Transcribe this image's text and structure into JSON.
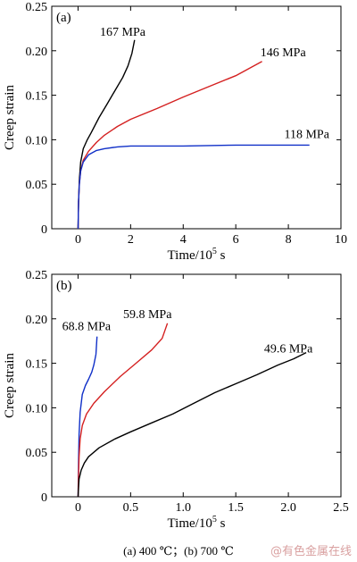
{
  "chart_data": [
    {
      "type": "line",
      "panel_label": "(a)",
      "xlabel": "Time/10",
      "xlabel_sup": "5",
      "xlabel_unit": " s",
      "ylabel": "Creep strain",
      "xlim": [
        -1,
        10
      ],
      "ylim": [
        0,
        0.25
      ],
      "xticks": [
        "0",
        "2",
        "4",
        "6",
        "8",
        "10"
      ],
      "yticks": [
        "0",
        "0.05",
        "0.10",
        "0.15",
        "0.20",
        "0.25"
      ],
      "grid": false,
      "series": [
        {
          "name": "167 MPa",
          "color": "#000000",
          "x": [
            0,
            0.02,
            0.05,
            0.1,
            0.2,
            0.35,
            0.5,
            0.8,
            1.1,
            1.4,
            1.7,
            1.9,
            2.05,
            2.15
          ],
          "y": [
            0,
            0.03,
            0.055,
            0.075,
            0.09,
            0.1,
            0.108,
            0.125,
            0.14,
            0.155,
            0.17,
            0.183,
            0.197,
            0.212
          ]
        },
        {
          "name": "146 MPa",
          "color": "#d42020",
          "x": [
            0,
            0.02,
            0.05,
            0.1,
            0.2,
            0.4,
            0.7,
            1.0,
            1.5,
            2.0,
            3.0,
            4.0,
            5.0,
            6.0,
            7.0
          ],
          "y": [
            0,
            0.03,
            0.05,
            0.065,
            0.077,
            0.087,
            0.097,
            0.105,
            0.115,
            0.123,
            0.135,
            0.148,
            0.16,
            0.172,
            0.188
          ]
        },
        {
          "name": "118 MPa",
          "color": "#1030c8",
          "x": [
            0,
            0.02,
            0.05,
            0.1,
            0.2,
            0.4,
            0.7,
            1.0,
            1.5,
            2.0,
            4.0,
            6.0,
            8.0,
            8.8
          ],
          "y": [
            0,
            0.03,
            0.05,
            0.065,
            0.075,
            0.083,
            0.088,
            0.09,
            0.092,
            0.093,
            0.093,
            0.094,
            0.094,
            0.094
          ]
        }
      ]
    },
    {
      "type": "line",
      "panel_label": "(b)",
      "xlabel": "Time/10",
      "xlabel_sup": "5",
      "xlabel_unit": " s",
      "ylabel": "Creep strain",
      "xlim": [
        -0.25,
        2.5
      ],
      "ylim": [
        0,
        0.25
      ],
      "xticks": [
        "0",
        "0.5",
        "1.0",
        "1.5",
        "2.0",
        "2.5"
      ],
      "yticks": [
        "0",
        "0.05",
        "0.10",
        "0.15",
        "0.20",
        "0.25"
      ],
      "grid": false,
      "series": [
        {
          "name": "68.8 MPa",
          "color": "#1030c8",
          "x": [
            0,
            0.005,
            0.01,
            0.02,
            0.04,
            0.07,
            0.1,
            0.13,
            0.15,
            0.17,
            0.18
          ],
          "y": [
            0,
            0.04,
            0.07,
            0.095,
            0.115,
            0.125,
            0.132,
            0.14,
            0.148,
            0.16,
            0.18
          ]
        },
        {
          "name": "59.8 MPa",
          "color": "#d42020",
          "x": [
            0,
            0.005,
            0.01,
            0.02,
            0.04,
            0.08,
            0.15,
            0.25,
            0.4,
            0.55,
            0.7,
            0.8,
            0.85
          ],
          "y": [
            0,
            0.025,
            0.045,
            0.065,
            0.08,
            0.093,
            0.105,
            0.118,
            0.135,
            0.15,
            0.165,
            0.178,
            0.195
          ]
        },
        {
          "name": "49.6 MPa",
          "color": "#000000",
          "x": [
            0,
            0.005,
            0.01,
            0.03,
            0.06,
            0.1,
            0.2,
            0.35,
            0.5,
            0.7,
            0.9,
            1.1,
            1.3,
            1.5,
            1.7,
            1.9,
            2.05,
            2.17
          ],
          "y": [
            0,
            0.01,
            0.02,
            0.03,
            0.038,
            0.045,
            0.055,
            0.065,
            0.073,
            0.083,
            0.093,
            0.105,
            0.117,
            0.127,
            0.137,
            0.148,
            0.155,
            0.162
          ]
        }
      ]
    }
  ],
  "caption": "(a) 400 ℃；(b) 700 ℃",
  "watermark": "@有色金属在线"
}
